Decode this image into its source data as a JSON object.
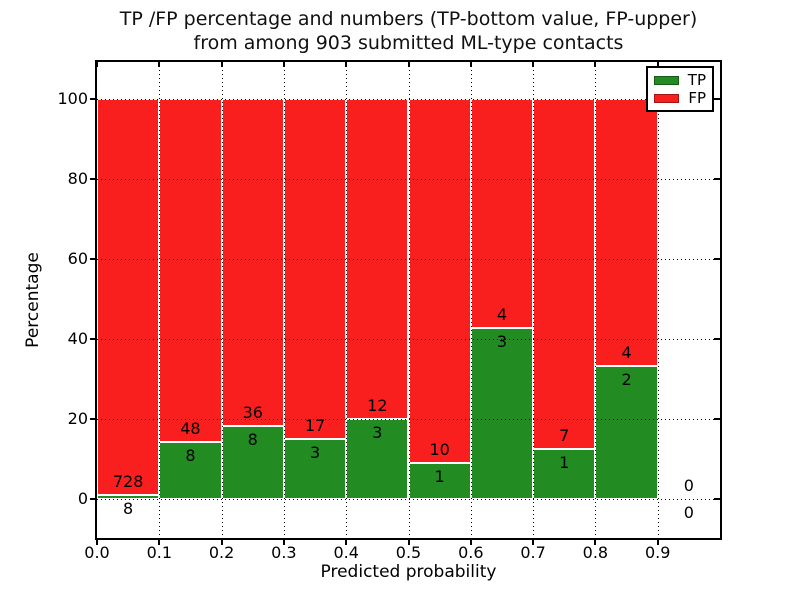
{
  "figure": {
    "title_line1": "TP /FP percentage and numbers (TP-bottom value, FP-upper)",
    "title_line2": "from among 903 submitted ML-type contacts"
  },
  "axes": {
    "xlabel": "Predicted probability",
    "ylabel": "Percentage",
    "xtick_labels": [
      "0.0",
      "0.1",
      "0.2",
      "0.3",
      "0.4",
      "0.5",
      "0.6",
      "0.7",
      "0.8",
      "0.9"
    ],
    "ytick_labels": [
      "0",
      "20",
      "40",
      "60",
      "80",
      "100"
    ],
    "ytick_values": [
      0,
      20,
      40,
      60,
      80,
      100
    ]
  },
  "legend": {
    "items": [
      {
        "label": "TP",
        "color": "#228b22"
      },
      {
        "label": "FP",
        "color": "#fa1f1f"
      }
    ]
  },
  "colors": {
    "tp": "#228b22",
    "fp": "#fa1f1f",
    "bar_edge": "#ffffff",
    "grid": "#000000",
    "spine": "#000000",
    "background": "#ffffff"
  },
  "chart_data": {
    "type": "bar",
    "stacked": true,
    "title": "TP /FP percentage and numbers (TP-bottom value, FP-upper) from among 903 submitted ML-type contacts",
    "xlabel": "Predicted probability",
    "ylabel": "Percentage",
    "bin_edges": [
      0.0,
      0.1,
      0.2,
      0.3,
      0.4,
      0.5,
      0.6,
      0.7,
      0.8,
      0.9,
      1.0
    ],
    "categories": [
      "0.0-0.1",
      "0.1-0.2",
      "0.2-0.3",
      "0.3-0.4",
      "0.4-0.5",
      "0.5-0.6",
      "0.6-0.7",
      "0.7-0.8",
      "0.8-0.9",
      "0.9-1.0"
    ],
    "series": [
      {
        "name": "TP",
        "counts": [
          8,
          8,
          8,
          3,
          3,
          1,
          3,
          1,
          2,
          0
        ]
      },
      {
        "name": "FP",
        "counts": [
          728,
          48,
          36,
          17,
          12,
          10,
          4,
          7,
          4,
          0
        ]
      }
    ],
    "tp_percent_per_bin": [
      1.09,
      14.29,
      18.18,
      15.0,
      20.0,
      9.09,
      42.86,
      12.5,
      33.33,
      0.0
    ],
    "total_contacts": 903,
    "xlim": [
      0.0,
      1.0
    ],
    "ylim": [
      -9.75,
      109.25
    ],
    "grid": "dotted",
    "legend_position": "upper right"
  }
}
